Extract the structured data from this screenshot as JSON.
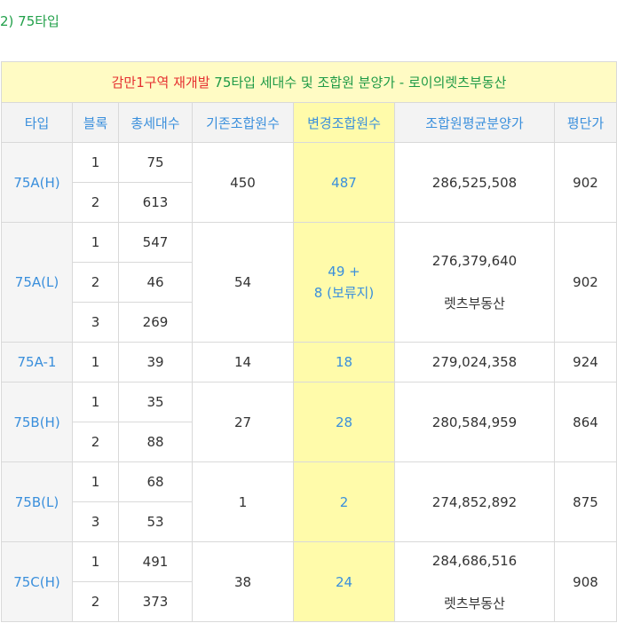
{
  "section_title": "2) 75타입",
  "table": {
    "caption": {
      "part1": "감만1구역 재개발",
      "part2": " 75타입 세대수 및 조합원 분양가 - 로이의렛츠부동산"
    },
    "headers": [
      "타입",
      "블록",
      "총세대수",
      "기존조합원수",
      "변경조합원수",
      "조합원평균분양가",
      "평단가"
    ],
    "groups": [
      {
        "type": "75A(H)",
        "blocks": [
          {
            "block": "1",
            "total": "75"
          },
          {
            "block": "2",
            "total": "613"
          }
        ],
        "existing": "450",
        "changed": "487",
        "avg_price": "286,525,508",
        "price_note": "",
        "per_pyeong": "902"
      },
      {
        "type": "75A(L)",
        "blocks": [
          {
            "block": "1",
            "total": "547"
          },
          {
            "block": "2",
            "total": "46"
          },
          {
            "block": "3",
            "total": "269"
          }
        ],
        "existing": "54",
        "changed_line1": "49 +",
        "changed_line2": "8 (보류지)",
        "avg_price": "276,379,640",
        "price_note": "렛츠부동산",
        "per_pyeong": "902"
      },
      {
        "type": "75A-1",
        "blocks": [
          {
            "block": "1",
            "total": "39"
          }
        ],
        "existing": "14",
        "changed": "18",
        "avg_price": "279,024,358",
        "price_note": "",
        "per_pyeong": "924"
      },
      {
        "type": "75B(H)",
        "blocks": [
          {
            "block": "1",
            "total": "35"
          },
          {
            "block": "2",
            "total": "88"
          }
        ],
        "existing": "27",
        "changed": "28",
        "avg_price": "280,584,959",
        "price_note": "",
        "per_pyeong": "864"
      },
      {
        "type": "75B(L)",
        "blocks": [
          {
            "block": "1",
            "total": "68"
          },
          {
            "block": "3",
            "total": "53"
          }
        ],
        "existing": "1",
        "changed": "2",
        "avg_price": "274,852,892",
        "price_note": "",
        "per_pyeong": "875"
      },
      {
        "type": "75C(H)",
        "blocks": [
          {
            "block": "1",
            "total": "491"
          },
          {
            "block": "2",
            "total": "373"
          }
        ],
        "existing": "38",
        "changed": "24",
        "avg_price": "284,686,516",
        "price_note": "렛츠부동산",
        "per_pyeong": "908"
      }
    ]
  }
}
